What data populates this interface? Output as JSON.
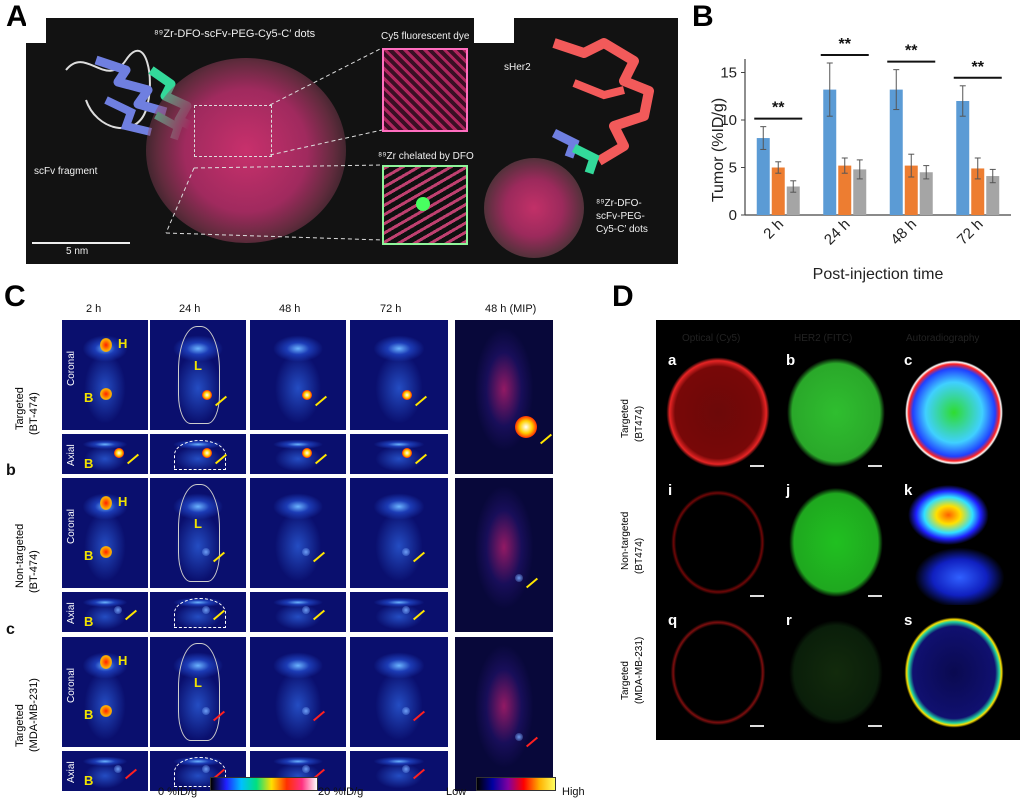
{
  "panels": {
    "A": "A",
    "B": "B",
    "C": "C",
    "D": "D"
  },
  "panel_a": {
    "title": "⁸⁹Zr-DFO-scFv-PEG-Cy5-C′ dots",
    "scfv_label": "scFv fragment",
    "scale_bar": "5 nm",
    "inset1_label": "Cy5 fluorescent dye",
    "inset2_label": "⁸⁹Zr chelated by DFO",
    "sher2_label": "sHer2",
    "complex_label_1": "⁸⁹Zr-DFO-",
    "complex_label_2": "scFv-PEG-",
    "complex_label_3": "Cy5-C′ dots",
    "colors": {
      "scfv_blue": "#6f7fe0",
      "scfv_green": "#33d99a",
      "dots": "#d23a7a",
      "sher2": "#f25a5a"
    }
  },
  "panel_c": {
    "columns": [
      "2 h",
      "24 h",
      "48 h",
      "72 h",
      "48 h (MIP)"
    ],
    "group_letters": [
      "",
      "b",
      "c"
    ],
    "groups": [
      "Targeted\n(BT-474)",
      "Non-targeted\n(BT-474)",
      "Targeted\n(MDA-MB-231)"
    ],
    "group_line1": [
      "Targeted",
      "Non-targeted",
      "Targeted"
    ],
    "group_line2": [
      "(BT-474)",
      "(BT-474)",
      "(MDA-MB-231)"
    ],
    "row_types": [
      "Coronal",
      "Axial"
    ],
    "marks": {
      "H": "H",
      "B": "B",
      "L": "L"
    },
    "scale1_left": "0 %ID/g",
    "scale1_right": "20 %ID/g",
    "scale2_left": "Low",
    "scale2_right": "High"
  },
  "panel_d": {
    "columns": [
      "Optical (Cy5)",
      "HER2 (FITC)",
      "Autoradiography"
    ],
    "row_line1": [
      "Targeted",
      "Non-targeted",
      "Targeted"
    ],
    "row_line2": [
      "(BT474)",
      "(BT474)",
      "(MDA-MB-231)"
    ],
    "letters": [
      [
        "a",
        "b",
        "c"
      ],
      [
        "i",
        "j",
        "k"
      ],
      [
        "q",
        "r",
        "s"
      ]
    ]
  },
  "chart_data": {
    "type": "bar",
    "categories": [
      "2 h",
      "24 h",
      "48 h",
      "72 h"
    ],
    "series": [
      {
        "values": [
          8.1,
          13.2,
          13.2,
          12.0
        ],
        "errors": [
          1.2,
          2.8,
          2.1,
          1.6
        ],
        "color": "#5b9bd5"
      },
      {
        "values": [
          5.0,
          5.2,
          5.2,
          4.9
        ],
        "errors": [
          0.6,
          0.8,
          1.2,
          1.1
        ],
        "color": "#ed7d31"
      },
      {
        "values": [
          3.0,
          4.8,
          4.5,
          4.1
        ],
        "errors": [
          0.6,
          1.0,
          0.7,
          0.7
        ],
        "color": "#a5a5a5"
      }
    ],
    "significance": [
      "**",
      "**",
      "**",
      "**"
    ],
    "xlabel": "Post-injection time",
    "ylabel": "Tumor (%ID/g)",
    "ylim": [
      0,
      16
    ],
    "yticks": [
      "0",
      "5",
      "10",
      "15"
    ],
    "grid": false,
    "legend": "none"
  }
}
